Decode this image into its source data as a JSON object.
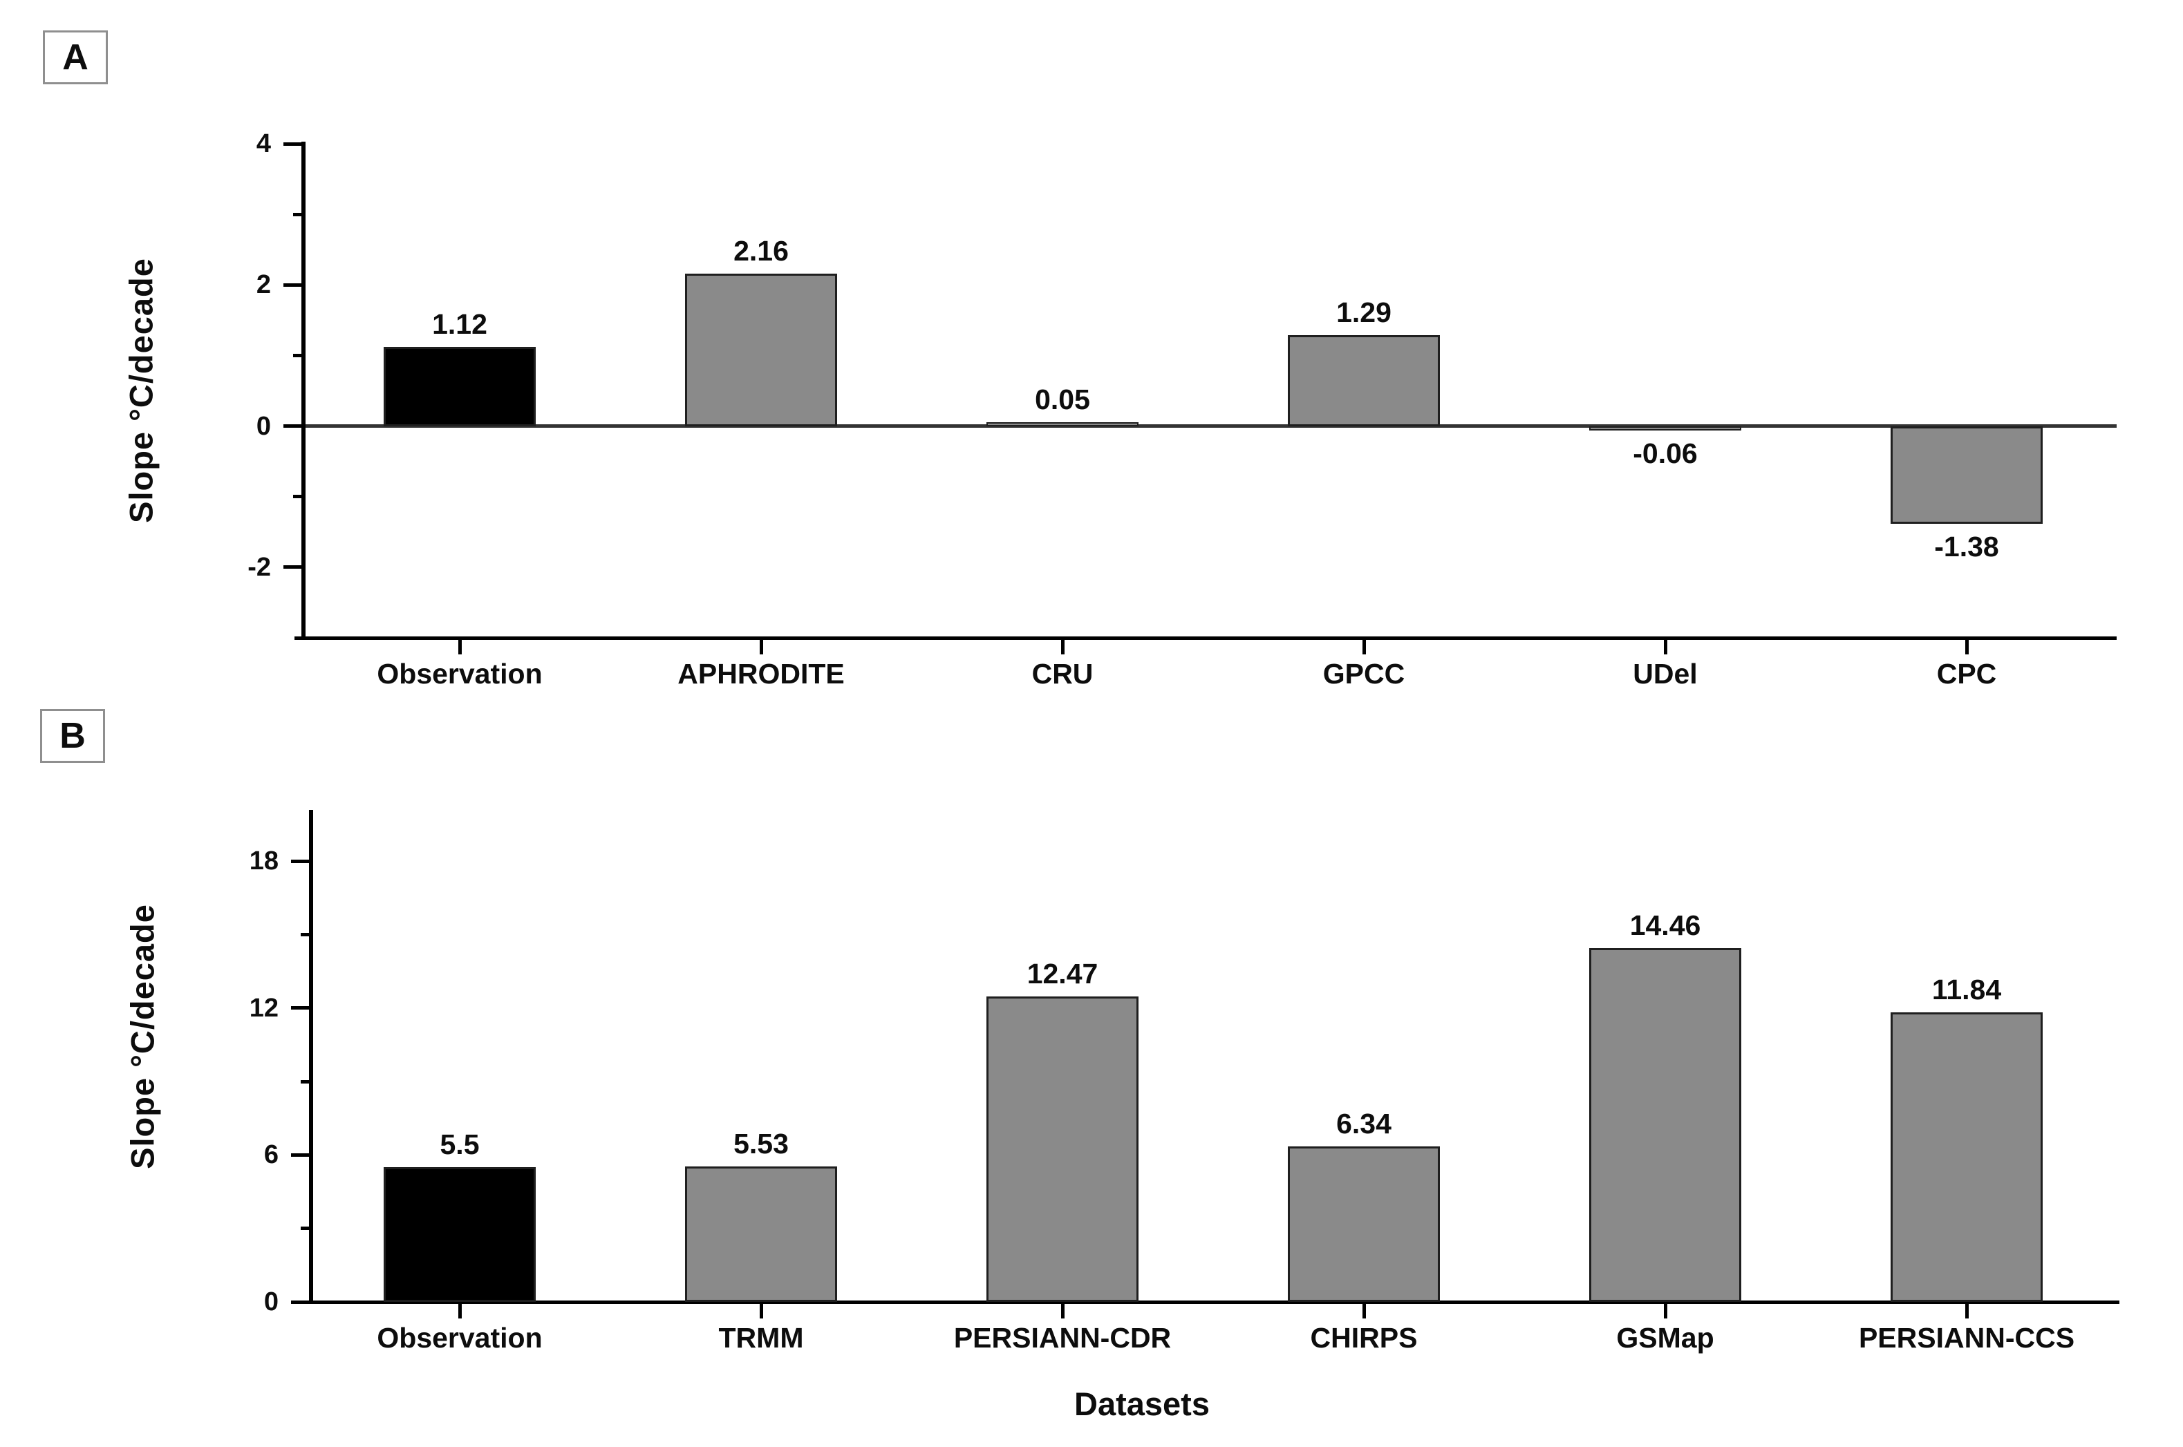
{
  "figure": {
    "background": "#ffffff",
    "bar_outline_color": "#1f1f1f",
    "gray_bar_color": "#8a8a8a",
    "black_bar_color": "#000000"
  },
  "chart_data": [
    {
      "type": "bar",
      "panel": "A",
      "categories": [
        "Observation",
        "APHRODITE",
        "CRU",
        "GPCC",
        "UDel",
        "CPC"
      ],
      "values": [
        1.12,
        2.16,
        0.05,
        1.29,
        -0.06,
        -1.38
      ],
      "value_labels": [
        "1.12",
        "2.16",
        "0.05",
        "1.29",
        "-0.06",
        "-1.38"
      ],
      "bar_colors": [
        "#000000",
        "#8a8a8a",
        "#8a8a8a",
        "#8a8a8a",
        "#8a8a8a",
        "#8a8a8a"
      ],
      "title": "",
      "xlabel": "",
      "ylabel": "Slope °C/decade",
      "ylim": [
        -3,
        4.03
      ],
      "yticks": [
        {
          "v": 4,
          "label": "4"
        },
        {
          "v": 2,
          "label": "2"
        },
        {
          "v": 0,
          "label": "0"
        },
        {
          "v": -2,
          "label": "-2"
        }
      ],
      "yticks_minor": [
        3,
        1,
        -1
      ],
      "grid": false,
      "legend": null,
      "zero_line": true
    },
    {
      "type": "bar",
      "panel": "B",
      "categories": [
        "Observation",
        "TRMM",
        "PERSIANN-CDR",
        "CHIRPS",
        "GSMap",
        "PERSIANN-CCS"
      ],
      "values": [
        5.5,
        5.53,
        12.47,
        6.34,
        14.46,
        11.84
      ],
      "value_labels": [
        "5.5",
        "5.53",
        "12.47",
        "6.34",
        "14.46",
        "11.84"
      ],
      "bar_colors": [
        "#000000",
        "#8a8a8a",
        "#8a8a8a",
        "#8a8a8a",
        "#8a8a8a",
        "#8a8a8a"
      ],
      "title": "",
      "xlabel": "Datasets",
      "ylabel": "Slope °C/decade",
      "ylim": [
        0,
        20.1
      ],
      "yticks": [
        {
          "v": 18,
          "label": "18"
        },
        {
          "v": 12,
          "label": "12"
        },
        {
          "v": 6,
          "label": "6"
        },
        {
          "v": 0,
          "label": "0"
        }
      ],
      "yticks_minor": [
        15,
        9,
        3
      ],
      "grid": false,
      "legend": null,
      "zero_line": false
    }
  ]
}
